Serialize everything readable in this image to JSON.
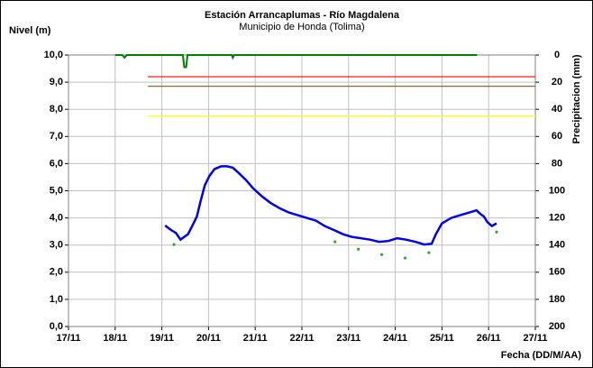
{
  "chart_data": {
    "type": "line",
    "title": "Estación Arrancaplumas - Río Magdalena",
    "subtitle": "Municipio de Honda (Tolima)",
    "y_label": "Nivel (m)",
    "y2_label": "Precipitacion (mm)",
    "x_label": "Fecha (DD/M/AA)",
    "xlim": [
      17,
      27
    ],
    "xticks": [
      {
        "value": 17,
        "label": "17/11"
      },
      {
        "value": 18,
        "label": "18/11"
      },
      {
        "value": 19,
        "label": "19/11"
      },
      {
        "value": 20,
        "label": "20/11"
      },
      {
        "value": 21,
        "label": "21/11"
      },
      {
        "value": 22,
        "label": "22/11"
      },
      {
        "value": 23,
        "label": "23/11"
      },
      {
        "value": 24,
        "label": "24/11"
      },
      {
        "value": 25,
        "label": "25/11"
      },
      {
        "value": 26,
        "label": "26/11"
      },
      {
        "value": 27,
        "label": "27/11"
      }
    ],
    "ylim": [
      0,
      10
    ],
    "yticks": [
      {
        "value": 0,
        "label": "0,0"
      },
      {
        "value": 1,
        "label": "1,0"
      },
      {
        "value": 2,
        "label": "2,0"
      },
      {
        "value": 3,
        "label": "3,0"
      },
      {
        "value": 4,
        "label": "4,0"
      },
      {
        "value": 5,
        "label": "5,0"
      },
      {
        "value": 6,
        "label": "6,0"
      },
      {
        "value": 7,
        "label": "7,0"
      },
      {
        "value": 8,
        "label": "8,0"
      },
      {
        "value": 9,
        "label": "9,0"
      },
      {
        "value": 10,
        "label": "10,0"
      }
    ],
    "y2lim": [
      200,
      0
    ],
    "y2ticks": [
      0,
      20,
      40,
      60,
      80,
      100,
      120,
      140,
      160,
      180,
      200
    ],
    "grid": true,
    "series": [
      {
        "kind": "line",
        "color": "#0000ee",
        "axis": "y",
        "x": [
          19.07,
          19.2,
          19.3,
          19.4,
          19.48,
          19.56,
          19.65,
          19.75,
          19.82,
          19.92,
          20.02,
          20.13,
          20.27,
          20.4,
          20.52,
          20.65,
          20.8,
          20.95,
          21.14,
          21.33,
          21.53,
          21.72,
          21.91,
          22.1,
          22.3,
          22.49,
          22.69,
          22.88,
          23.07,
          23.27,
          23.46,
          23.65,
          23.85,
          24.04,
          24.23,
          24.43,
          24.62,
          24.78,
          24.87,
          25.0,
          25.2,
          25.39,
          25.59,
          25.74,
          25.82,
          25.9,
          25.97,
          26.07,
          26.17
        ],
        "values": [
          3.72,
          3.55,
          3.45,
          3.2,
          3.3,
          3.4,
          3.7,
          4.05,
          4.55,
          5.2,
          5.55,
          5.8,
          5.9,
          5.9,
          5.85,
          5.65,
          5.4,
          5.1,
          4.8,
          4.55,
          4.35,
          4.2,
          4.1,
          4.0,
          3.9,
          3.7,
          3.55,
          3.4,
          3.3,
          3.25,
          3.2,
          3.12,
          3.15,
          3.25,
          3.2,
          3.12,
          3.02,
          3.05,
          3.4,
          3.8,
          4.0,
          4.1,
          4.2,
          4.28,
          4.15,
          4.05,
          3.85,
          3.7,
          3.8
        ]
      },
      {
        "kind": "scatter",
        "color": "#33aa33",
        "axis": "y",
        "x": [
          19.26,
          22.71,
          23.21,
          23.71,
          24.21,
          24.72,
          26.17
        ],
        "values": [
          3.02,
          3.12,
          2.85,
          2.65,
          2.52,
          2.72,
          3.48
        ]
      },
      {
        "kind": "line",
        "color": "#008000",
        "axis": "y2",
        "x": [
          18.0,
          18.15,
          18.2,
          18.25,
          19.45,
          19.48,
          19.52,
          19.55,
          20.5,
          20.52,
          20.55,
          25.75
        ],
        "values": [
          0,
          0,
          2,
          0,
          0,
          9,
          9,
          0,
          0,
          2,
          0,
          0
        ]
      },
      {
        "kind": "hline",
        "color": "#ff0000",
        "axis": "y",
        "x": [
          18.7,
          27
        ],
        "values": [
          9.2,
          9.2
        ]
      },
      {
        "kind": "hline",
        "color": "#996633",
        "axis": "y",
        "x": [
          18.7,
          27
        ],
        "values": [
          8.85,
          8.85
        ]
      },
      {
        "kind": "hline",
        "color": "#ffff00",
        "axis": "y",
        "x": [
          18.7,
          27
        ],
        "values": [
          7.75,
          7.75
        ]
      }
    ]
  }
}
